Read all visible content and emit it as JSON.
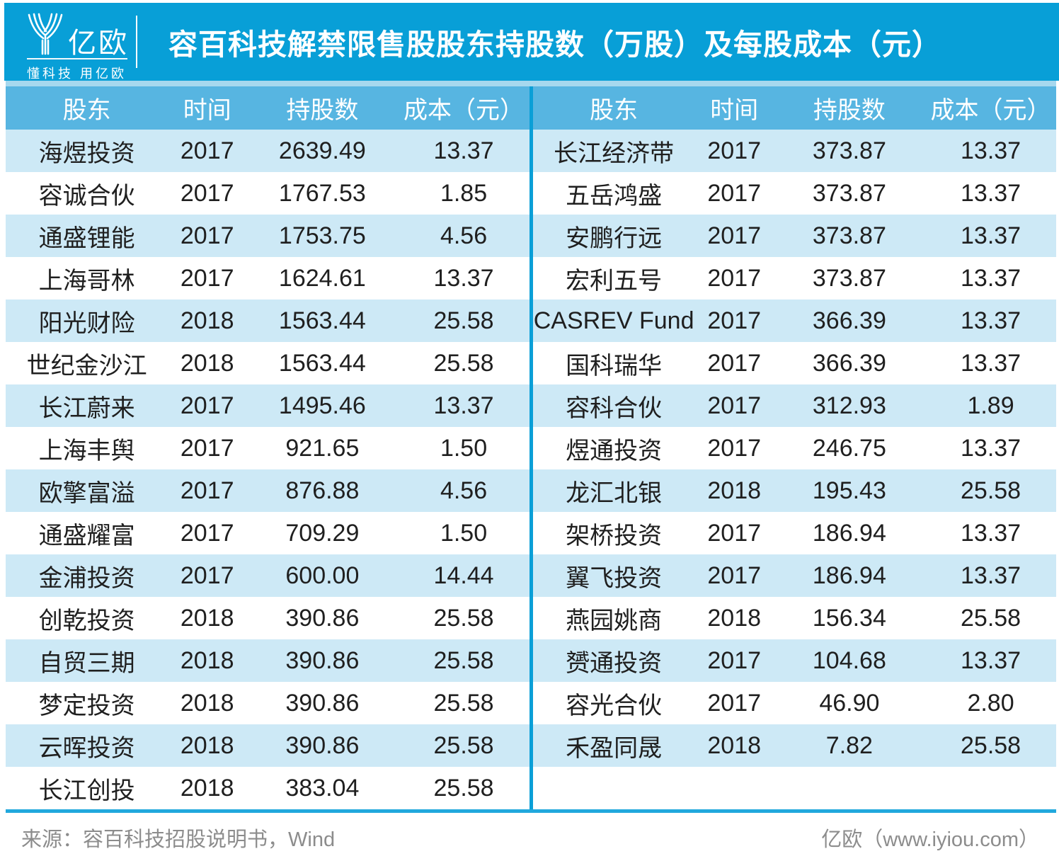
{
  "header": {
    "logo_text": "亿欧",
    "logo_tagline": "懂科技 用亿欧"
  },
  "chart_data": {
    "type": "table",
    "title": "容百科技解禁限售股股东持股数（万股）及每股成本（元）",
    "columns": [
      "股东",
      "时间",
      "持股数",
      "成本（元）"
    ],
    "left_rows": [
      [
        "海煜投资",
        "2017",
        "2639.49",
        "13.37"
      ],
      [
        "容诚合伙",
        "2017",
        "1767.53",
        "1.85"
      ],
      [
        "通盛锂能",
        "2017",
        "1753.75",
        "4.56"
      ],
      [
        "上海哥林",
        "2017",
        "1624.61",
        "13.37"
      ],
      [
        "阳光财险",
        "2018",
        "1563.44",
        "25.58"
      ],
      [
        "世纪金沙江",
        "2018",
        "1563.44",
        "25.58"
      ],
      [
        "长江蔚来",
        "2017",
        "1495.46",
        "13.37"
      ],
      [
        "上海丰舆",
        "2017",
        "921.65",
        "1.50"
      ],
      [
        "欧擎富溢",
        "2017",
        "876.88",
        "4.56"
      ],
      [
        "通盛耀富",
        "2017",
        "709.29",
        "1.50"
      ],
      [
        "金浦投资",
        "2017",
        "600.00",
        "14.44"
      ],
      [
        "创乾投资",
        "2018",
        "390.86",
        "25.58"
      ],
      [
        "自贸三期",
        "2018",
        "390.86",
        "25.58"
      ],
      [
        "梦定投资",
        "2018",
        "390.86",
        "25.58"
      ],
      [
        "云晖投资",
        "2018",
        "390.86",
        "25.58"
      ],
      [
        "长江创投",
        "2018",
        "383.04",
        "25.58"
      ]
    ],
    "right_rows": [
      [
        "长江经济带",
        "2017",
        "373.87",
        "13.37"
      ],
      [
        "五岳鸿盛",
        "2017",
        "373.87",
        "13.37"
      ],
      [
        "安鹏行远",
        "2017",
        "373.87",
        "13.37"
      ],
      [
        "宏利五号",
        "2017",
        "373.87",
        "13.37"
      ],
      [
        "CASREV Fund",
        "2017",
        "366.39",
        "13.37"
      ],
      [
        "国科瑞华",
        "2017",
        "366.39",
        "13.37"
      ],
      [
        "容科合伙",
        "2017",
        "312.93",
        "1.89"
      ],
      [
        "煜通投资",
        "2017",
        "246.75",
        "13.37"
      ],
      [
        "龙汇北银",
        "2018",
        "195.43",
        "25.58"
      ],
      [
        "架桥投资",
        "2017",
        "186.94",
        "13.37"
      ],
      [
        "翼飞投资",
        "2017",
        "186.94",
        "13.37"
      ],
      [
        "燕园姚商",
        "2018",
        "156.34",
        "25.58"
      ],
      [
        "赟通投资",
        "2017",
        "104.68",
        "13.37"
      ],
      [
        "容光合伙",
        "2017",
        "46.90",
        "2.80"
      ],
      [
        "禾盈同晟",
        "2018",
        "7.82",
        "25.58"
      ]
    ],
    "source": "容百科技招股说明书，Wind"
  },
  "footer": {
    "source": "来源：容百科技招股说明书，Wind",
    "site": "亿欧（www.iyiou.com）"
  },
  "colors": {
    "banner_blue": "#089fd7",
    "header_row_blue": "#57b5e1",
    "stripe_light_blue": "#cde9f6",
    "gap_strip_blue": "#a6d8ee",
    "divider_blue": "#0a9fd7",
    "bottom_rule_blue": "#21a8dd",
    "footer_gray": "#8c8c8c"
  }
}
